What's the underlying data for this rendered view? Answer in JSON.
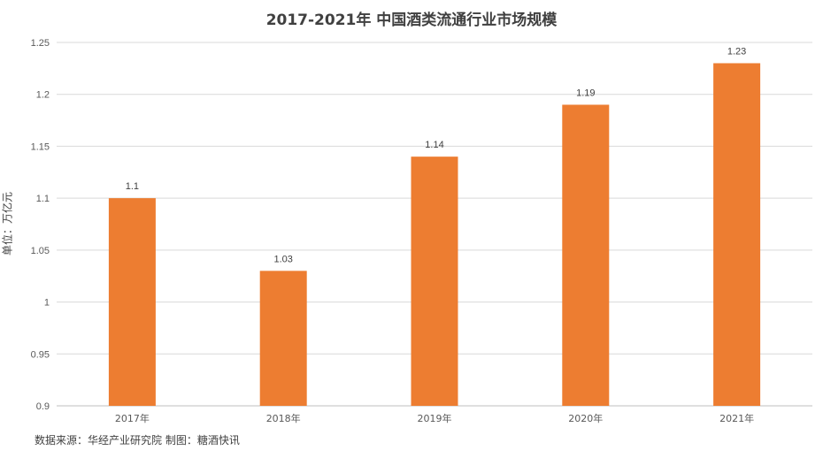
{
  "chart_data": {
    "type": "bar",
    "title": "2017-2021年 中国酒类流通行业市场规模",
    "xlabel": "",
    "ylabel": "单位：万亿元",
    "categories": [
      "2017年",
      "2018年",
      "2019年",
      "2020年",
      "2021年"
    ],
    "values": [
      1.1,
      1.03,
      1.14,
      1.19,
      1.23
    ],
    "value_labels": [
      "1.1",
      "1.03",
      "1.14",
      "1.19",
      "1.23"
    ],
    "ylim": [
      0.9,
      1.25
    ],
    "yticks": [
      0.9,
      0.95,
      1.0,
      1.05,
      1.1,
      1.15,
      1.2,
      1.25
    ],
    "ytick_labels": [
      "0.9",
      "0.95",
      "1",
      "1.05",
      "1.1",
      "1.15",
      "1.2",
      "1.25"
    ],
    "grid": true,
    "legend": "none",
    "bar_color": "#ED7D31",
    "grid_color": "#D9D9D9"
  },
  "source_note": "数据来源：华经产业研究院 制图：糖酒快讯"
}
